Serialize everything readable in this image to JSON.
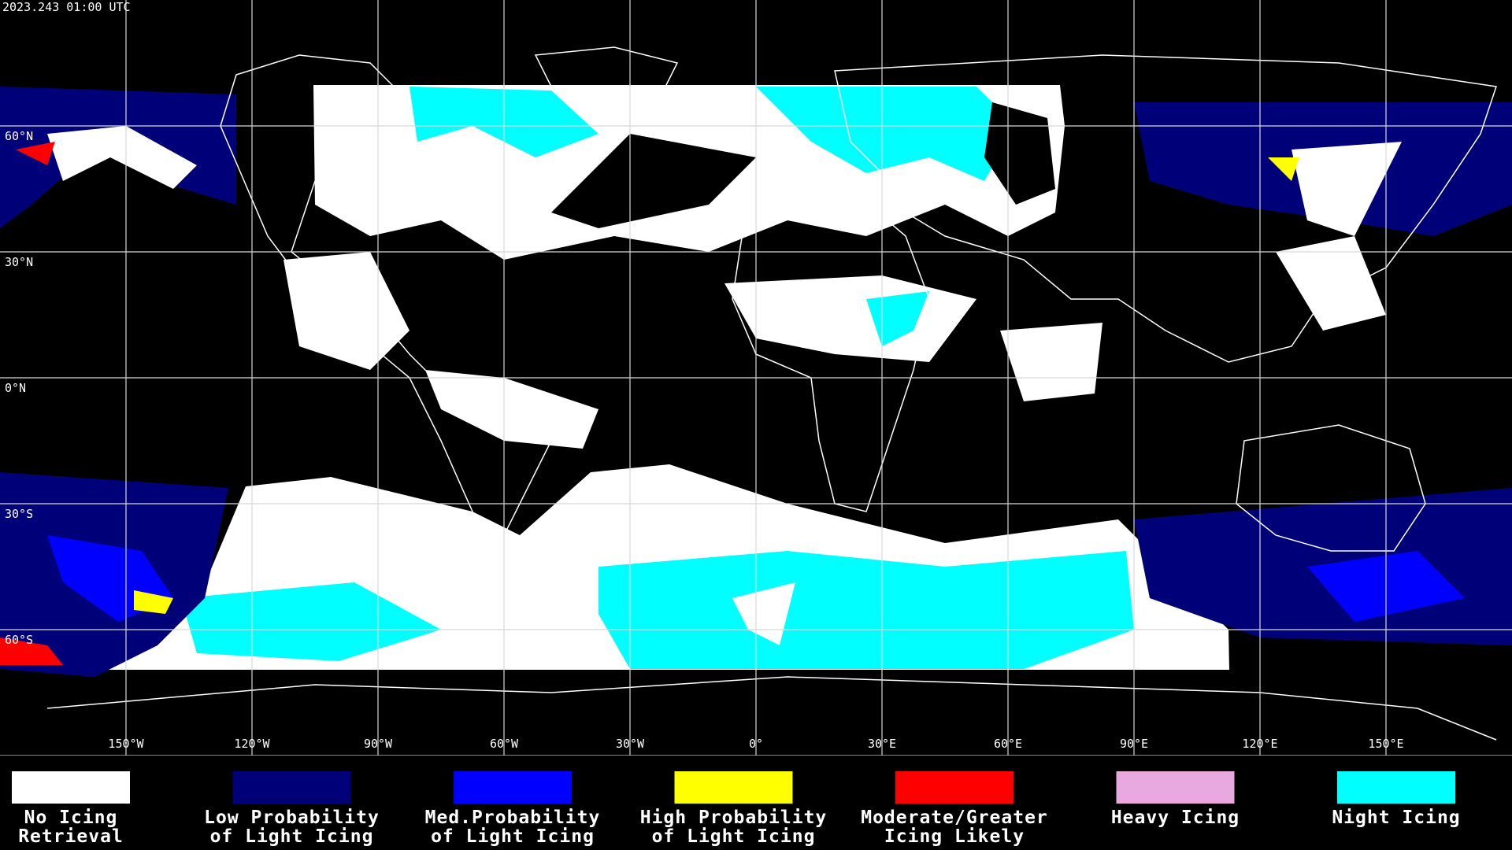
{
  "header": {
    "timestamp": "2023.243 01:00 UTC"
  },
  "map": {
    "lon_labels": [
      "150°W",
      "120°W",
      "90°W",
      "60°W",
      "30°W",
      "0°",
      "30°E",
      "60°E",
      "90°E",
      "120°E",
      "150°E"
    ],
    "lat_labels": [
      "60°N",
      "30°N",
      "0°N",
      "30°S",
      "60°S"
    ]
  },
  "legend": [
    {
      "lines": [
        "No Icing",
        "Retrieval"
      ],
      "color": "#ffffff"
    },
    {
      "lines": [
        "Low Probability",
        "of Light Icing"
      ],
      "color": "#000078"
    },
    {
      "lines": [
        "Med.Probability",
        "of Light Icing"
      ],
      "color": "#0000ff"
    },
    {
      "lines": [
        "High Probability",
        "of Light Icing"
      ],
      "color": "#ffff00"
    },
    {
      "lines": [
        "Moderate/Greater",
        "Icing Likely"
      ],
      "color": "#ff0000"
    },
    {
      "lines": [
        "Heavy Icing"
      ],
      "color": "#e8a8e0"
    },
    {
      "lines": [
        "Night Icing"
      ],
      "color": "#00ffff"
    }
  ]
}
